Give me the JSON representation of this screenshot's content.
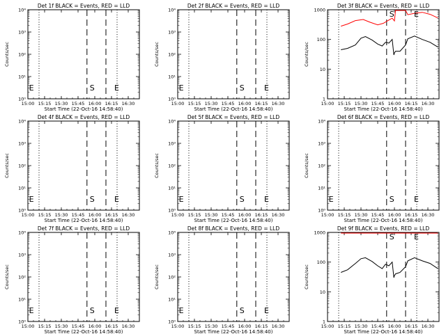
{
  "chart_data": [
    {
      "type": "line",
      "title": "Det 1f BLACK = Events, RED = LLD",
      "xlabel": "Start Time (22-Oct-16 14:58:40)",
      "ylabel": "Counts/sec",
      "yscale": "log",
      "ylim_exp": [
        0,
        4
      ],
      "ytick_labels": [
        "10⁰",
        "10¹",
        "10²",
        "10³",
        "10⁴"
      ],
      "xlim": [
        "15:00",
        "16:40"
      ],
      "xtick_labels": [
        "15:00",
        "15:15",
        "15:30",
        "15:45",
        "16:00",
        "16:15",
        "16:30"
      ],
      "dotted_lines": [
        "15:10",
        "16:20"
      ],
      "dashed_lines": [
        "15:53",
        "16:10"
      ],
      "markers": [
        {
          "label": "E",
          "x": "15:01"
        },
        {
          "label": "S",
          "x": "15:53"
        },
        {
          "label": "E",
          "x": "16:15"
        }
      ],
      "series": []
    },
    {
      "type": "line",
      "title": "Det 2f BLACK = Events, RED = LLD",
      "xlabel": "Start Time (22-Oct-16 14:58:40)",
      "ylabel": "Counts/sec",
      "yscale": "log",
      "ylim_exp": [
        0,
        4
      ],
      "ytick_labels": [
        "10⁰",
        "10¹",
        "10²",
        "10³",
        "10⁴"
      ],
      "xlim": [
        "15:00",
        "16:40"
      ],
      "xtick_labels": [
        "15:00",
        "15:15",
        "15:30",
        "15:45",
        "16:00",
        "16:15",
        "16:30"
      ],
      "dotted_lines": [
        "15:10",
        "16:20"
      ],
      "dashed_lines": [
        "15:53",
        "16:10"
      ],
      "markers": [
        {
          "label": "E",
          "x": "15:01"
        },
        {
          "label": "S",
          "x": "15:53"
        },
        {
          "label": "E",
          "x": "16:15"
        }
      ],
      "series": []
    },
    {
      "type": "line",
      "title": "Det 3f BLACK = Events, RED = LLD",
      "xlabel": "Start Time (22-Oct-16 14:58:40)",
      "ylabel": "Counts/sec",
      "yscale": "log",
      "ylim": [
        1,
        1000
      ],
      "ytick_labels": [
        "1",
        "10",
        "100",
        "1000"
      ],
      "xlim": [
        "15:00",
        "16:40"
      ],
      "xtick_labels": [
        "15:00",
        "15:15",
        "15:30",
        "15:45",
        "16:00",
        "16:15",
        "16:30"
      ],
      "dotted_lines": [
        "15:10",
        "16:20"
      ],
      "dashed_lines": [
        "15:53",
        "16:10"
      ],
      "markers": [
        {
          "label": "S",
          "x": "15:53"
        },
        {
          "label": "E",
          "x": "16:15"
        }
      ],
      "series": [
        {
          "color": "#ff0000",
          "x": [
            "15:12",
            "15:18",
            "15:25",
            "15:32",
            "15:38",
            "15:45",
            "15:50",
            "15:55",
            "15:58",
            "16:00",
            "16:01",
            "16:05",
            "16:08",
            "16:10",
            "16:12",
            "16:18",
            "16:25",
            "16:32",
            "16:39"
          ],
          "values": [
            280,
            330,
            430,
            470,
            380,
            310,
            350,
            450,
            520,
            420,
            1000,
            1000,
            1000,
            1000,
            680,
            760,
            820,
            700,
            530
          ]
        },
        {
          "color": "#000000",
          "x": [
            "15:12",
            "15:18",
            "15:25",
            "15:30",
            "15:34",
            "15:40",
            "15:45",
            "15:49",
            "15:52",
            "15:55",
            "15:58",
            "15:59.5",
            "16:00",
            "16:01",
            "16:05",
            "16:10",
            "16:12",
            "16:18",
            "16:25",
            "16:32",
            "16:39"
          ],
          "values": [
            45,
            50,
            65,
            110,
            125,
            95,
            70,
            60,
            80,
            75,
            100,
            30,
            35,
            40,
            40,
            65,
            105,
            130,
            100,
            80,
            55
          ]
        }
      ]
    },
    {
      "type": "line",
      "title": "Det 4f BLACK = Events, RED = LLD",
      "xlabel": "Start Time (22-Oct-16 14:58:40)",
      "ylabel": "Counts/sec",
      "yscale": "log",
      "ylim_exp": [
        0,
        4
      ],
      "ytick_labels": [
        "10⁰",
        "10¹",
        "10²",
        "10³",
        "10⁴"
      ],
      "xlim": [
        "15:00",
        "16:40"
      ],
      "xtick_labels": [
        "15:00",
        "15:15",
        "15:30",
        "15:45",
        "16:00",
        "16:15",
        "16:30"
      ],
      "dotted_lines": [
        "15:10",
        "16:20"
      ],
      "dashed_lines": [
        "15:53",
        "16:10"
      ],
      "markers": [
        {
          "label": "E",
          "x": "15:01"
        },
        {
          "label": "S",
          "x": "15:53"
        },
        {
          "label": "E",
          "x": "16:15"
        }
      ],
      "series": []
    },
    {
      "type": "line",
      "title": "Det 5f BLACK = Events, RED = LLD",
      "xlabel": "Start Time (22-Oct-16 14:58:40)",
      "ylabel": "Counts/sec",
      "yscale": "log",
      "ylim_exp": [
        0,
        4
      ],
      "ytick_labels": [
        "10⁰",
        "10¹",
        "10²",
        "10³",
        "10⁴"
      ],
      "xlim": [
        "15:00",
        "16:40"
      ],
      "xtick_labels": [
        "15:00",
        "15:15",
        "15:30",
        "15:45",
        "16:00",
        "16:15",
        "16:30"
      ],
      "dotted_lines": [
        "15:10",
        "16:20"
      ],
      "dashed_lines": [
        "15:53",
        "16:10"
      ],
      "markers": [
        {
          "label": "E",
          "x": "15:01"
        },
        {
          "label": "S",
          "x": "15:53"
        },
        {
          "label": "E",
          "x": "16:15"
        }
      ],
      "series": []
    },
    {
      "type": "line",
      "title": "Det 6f BLACK = Events, RED = LLD",
      "xlabel": "Start Time (22-Oct-16 14:58:40)",
      "ylabel": "Counts/sec",
      "yscale": "log",
      "ylim_exp": [
        0,
        4
      ],
      "ytick_labels": [
        "10⁰",
        "10¹",
        "10²",
        "10³",
        "10⁴"
      ],
      "xlim": [
        "15:00",
        "16:40"
      ],
      "xtick_labels": [
        "15:00",
        "15:15",
        "15:30",
        "15:45",
        "16:00",
        "16:15",
        "16:30"
      ],
      "dotted_lines": [
        "15:10",
        "16:20"
      ],
      "dashed_lines": [
        "15:53",
        "16:10"
      ],
      "markers": [
        {
          "label": "E",
          "x": "15:01"
        },
        {
          "label": "S",
          "x": "15:53"
        },
        {
          "label": "E",
          "x": "16:15"
        }
      ],
      "series": []
    },
    {
      "type": "line",
      "title": "Det 7f BLACK = Events, RED = LLD",
      "xlabel": "Start Time (22-Oct-16 14:58:40)",
      "ylabel": "Counts/sec",
      "yscale": "log",
      "ylim_exp": [
        0,
        4
      ],
      "ytick_labels": [
        "10⁰",
        "10¹",
        "10²",
        "10³",
        "10⁴"
      ],
      "xlim": [
        "15:00",
        "16:40"
      ],
      "xtick_labels": [
        "15:00",
        "15:15",
        "15:30",
        "15:45",
        "16:00",
        "16:15",
        "16:30"
      ],
      "dotted_lines": [
        "15:10",
        "16:20"
      ],
      "dashed_lines": [
        "15:53",
        "16:10"
      ],
      "markers": [
        {
          "label": "E",
          "x": "15:01"
        },
        {
          "label": "S",
          "x": "15:53"
        },
        {
          "label": "E",
          "x": "16:15"
        }
      ],
      "series": []
    },
    {
      "type": "line",
      "title": "Det 8f BLACK = Events, RED = LLD",
      "xlabel": "Start Time (22-Oct-16 14:58:40)",
      "ylabel": "Counts/sec",
      "yscale": "log",
      "ylim_exp": [
        0,
        4
      ],
      "ytick_labels": [
        "10⁰",
        "10¹",
        "10²",
        "10³",
        "10⁴"
      ],
      "xlim": [
        "15:00",
        "16:40"
      ],
      "xtick_labels": [
        "15:00",
        "15:15",
        "15:30",
        "15:45",
        "16:00",
        "16:15",
        "16:30"
      ],
      "dotted_lines": [
        "15:10",
        "16:20"
      ],
      "dashed_lines": [
        "15:53",
        "16:10"
      ],
      "markers": [
        {
          "label": "E",
          "x": "15:01"
        },
        {
          "label": "S",
          "x": "15:53"
        },
        {
          "label": "E",
          "x": "16:15"
        }
      ],
      "series": []
    },
    {
      "type": "line",
      "title": "Det 9f BLACK = Events, RED = LLD",
      "xlabel": "Start Time (22-Oct-16 14:58:40)",
      "ylabel": "Counts/sec",
      "yscale": "log",
      "ylim": [
        1,
        1000
      ],
      "ytick_labels": [
        "1",
        "10",
        "100",
        "1000"
      ],
      "xlim": [
        "15:00",
        "16:40"
      ],
      "xtick_labels": [
        "15:00",
        "15:15",
        "15:30",
        "15:45",
        "16:00",
        "16:15",
        "16:30"
      ],
      "dotted_lines": [
        "15:10",
        "16:20"
      ],
      "dashed_lines": [
        "15:53",
        "16:10"
      ],
      "markers": [
        {
          "label": "S",
          "x": "15:53"
        },
        {
          "label": "E",
          "x": "16:15"
        }
      ],
      "series": [
        {
          "color": "#ff0000",
          "x": [
            "15:12",
            "15:25",
            "15:40",
            "15:55",
            "16:00",
            "16:10",
            "16:25",
            "16:39"
          ],
          "values": [
            1000,
            1000,
            1000,
            1000,
            1000,
            1000,
            1000,
            1000
          ]
        },
        {
          "color": "#000000",
          "x": [
            "15:12",
            "15:18",
            "15:25",
            "15:30",
            "15:34",
            "15:40",
            "15:45",
            "15:49",
            "15:52",
            "15:55",
            "15:58",
            "15:59.5",
            "16:00",
            "16:01",
            "16:05",
            "16:10",
            "16:12",
            "16:18",
            "16:25",
            "16:32",
            "16:39"
          ],
          "values": [
            45,
            55,
            90,
            130,
            140,
            105,
            75,
            60,
            85,
            75,
            100,
            30,
            35,
            40,
            45,
            70,
            110,
            140,
            110,
            90,
            60
          ]
        }
      ]
    }
  ]
}
